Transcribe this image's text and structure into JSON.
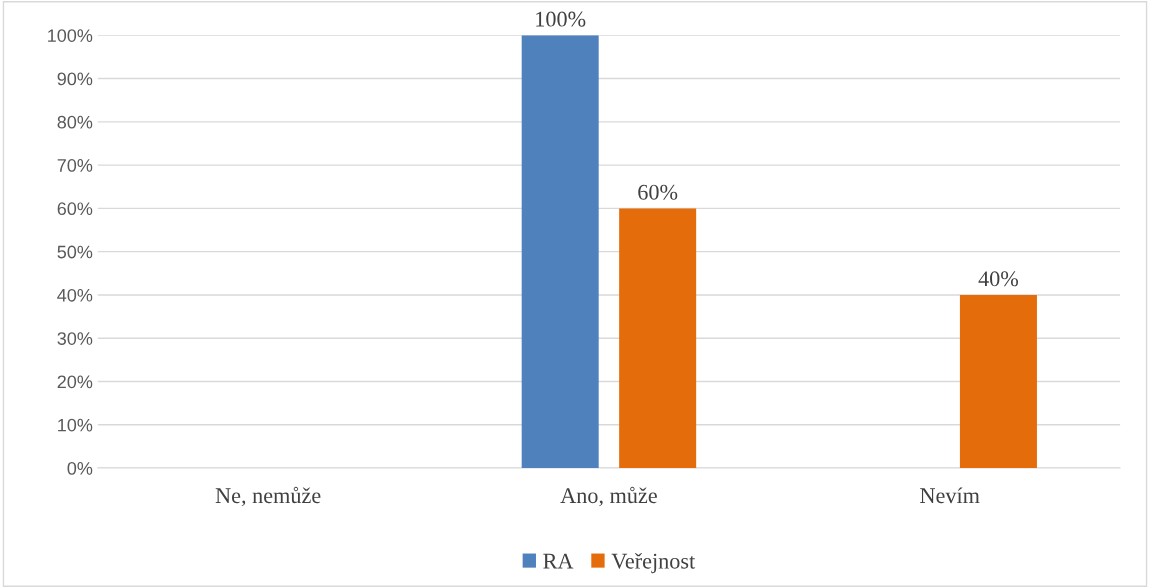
{
  "chart_data": {
    "type": "bar",
    "categories": [
      "Ne, nemůže",
      "Ano, může",
      "Nevím"
    ],
    "series": [
      {
        "name": "RA",
        "color": "#4f81bd",
        "values": [
          0,
          100,
          0
        ],
        "value_labels": [
          null,
          "100%",
          null
        ]
      },
      {
        "name": "Veřejnost",
        "color": "#e46c0a",
        "values": [
          0,
          60,
          40
        ],
        "value_labels": [
          null,
          "60%",
          "40%"
        ]
      }
    ],
    "ylim": [
      0,
      100
    ],
    "yticks": [
      {
        "value": 0,
        "label": "0%"
      },
      {
        "value": 10,
        "label": "10%"
      },
      {
        "value": 20,
        "label": "20%"
      },
      {
        "value": 30,
        "label": "30%"
      },
      {
        "value": 40,
        "label": "40%"
      },
      {
        "value": 50,
        "label": "50%"
      },
      {
        "value": 60,
        "label": "60%"
      },
      {
        "value": 70,
        "label": "70%"
      },
      {
        "value": 80,
        "label": "80%"
      },
      {
        "value": 90,
        "label": "90%"
      },
      {
        "value": 100,
        "label": "100%"
      }
    ],
    "grid": "y",
    "legend": "bottom"
  }
}
